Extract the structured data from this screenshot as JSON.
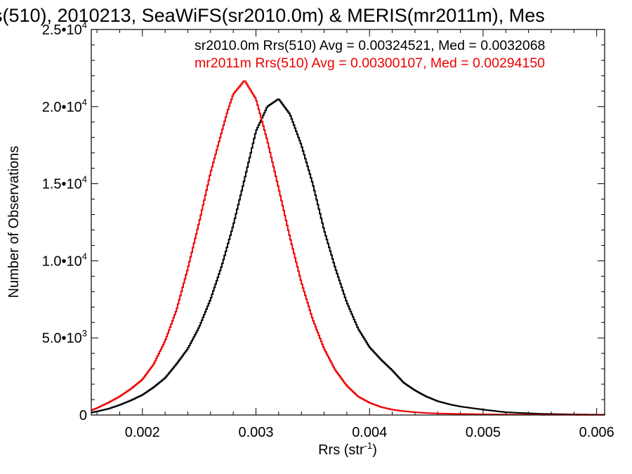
{
  "chart_data": {
    "type": "line",
    "title": "s(510), 2010213, SeaWiFS(sr2010.0m) & MERIS(mr2011m), Mes",
    "xlabel_main": "Rrs (str",
    "xlabel_sup": "-1",
    "xlabel_close": ")",
    "ylabel": "Number of Observations",
    "xlim": [
      0.00155,
      0.00607
    ],
    "ylim": [
      0,
      25000
    ],
    "grid": false,
    "legend_position": "top-right",
    "x_ticks": [
      {
        "value": 0.002,
        "label": "0.002"
      },
      {
        "value": 0.003,
        "label": "0.003"
      },
      {
        "value": 0.004,
        "label": "0.004"
      },
      {
        "value": 0.005,
        "label": "0.005"
      },
      {
        "value": 0.006,
        "label": "0.006"
      }
    ],
    "y_ticks": [
      {
        "value": 0,
        "mant": "0",
        "exp": ""
      },
      {
        "value": 5000,
        "mant": "5.0•10",
        "exp": "3"
      },
      {
        "value": 10000,
        "mant": "1.0•10",
        "exp": "4"
      },
      {
        "value": 15000,
        "mant": "1.5•10",
        "exp": "4"
      },
      {
        "value": 20000,
        "mant": "2.0•10",
        "exp": "4"
      },
      {
        "value": 25000,
        "mant": "2.5•10",
        "exp": "4"
      }
    ],
    "annotations": [
      {
        "text": "sr2010.0m Rrs(510) Avg = 0.00324521, Med = 0.0032068",
        "color": "#000000"
      },
      {
        "text": "mr2011m Rrs(510) Avg = 0.00300107, Med = 0.00294150",
        "color": "#ee0000"
      }
    ],
    "series": [
      {
        "color": "#000000",
        "x": [
          0.00155,
          0.0017,
          0.0018,
          0.0019,
          0.002,
          0.0021,
          0.0022,
          0.0023,
          0.0024,
          0.0025,
          0.0026,
          0.0027,
          0.0028,
          0.0029,
          0.003,
          0.0031,
          0.0032,
          0.0033,
          0.0034,
          0.0035,
          0.0036,
          0.0037,
          0.0038,
          0.0039,
          0.004,
          0.0041,
          0.0042,
          0.0043,
          0.0044,
          0.0045,
          0.0046,
          0.0047,
          0.0048,
          0.005,
          0.0052,
          0.0055,
          0.0058,
          0.00607
        ],
        "y": [
          150,
          400,
          650,
          950,
          1300,
          1800,
          2400,
          3300,
          4300,
          5700,
          7500,
          9700,
          12300,
          15300,
          18400,
          20000,
          20500,
          19500,
          17500,
          15000,
          12000,
          9500,
          7300,
          5600,
          4400,
          3600,
          2900,
          2100,
          1600,
          1200,
          900,
          700,
          550,
          350,
          180,
          80,
          40,
          20
        ]
      },
      {
        "color": "#ee0000",
        "x": [
          0.00155,
          0.0016,
          0.0017,
          0.0018,
          0.0019,
          0.002,
          0.0021,
          0.0022,
          0.0023,
          0.0024,
          0.0025,
          0.0026,
          0.0027,
          0.00275,
          0.0028,
          0.0029,
          0.003,
          0.0031,
          0.0032,
          0.0033,
          0.0034,
          0.0035,
          0.0036,
          0.0037,
          0.0038,
          0.0039,
          0.004,
          0.0041,
          0.0042,
          0.0043,
          0.0044,
          0.0045,
          0.0046,
          0.0048,
          0.005,
          0.0052,
          0.0055,
          0.00607
        ],
        "y": [
          300,
          450,
          800,
          1200,
          1700,
          2300,
          3300,
          4800,
          6800,
          9500,
          12500,
          15700,
          18400,
          19700,
          20800,
          21700,
          20500,
          17800,
          14700,
          11500,
          8600,
          6200,
          4300,
          2900,
          1900,
          1200,
          800,
          520,
          350,
          250,
          180,
          130,
          100,
          70,
          50,
          30,
          20,
          10
        ]
      }
    ]
  }
}
